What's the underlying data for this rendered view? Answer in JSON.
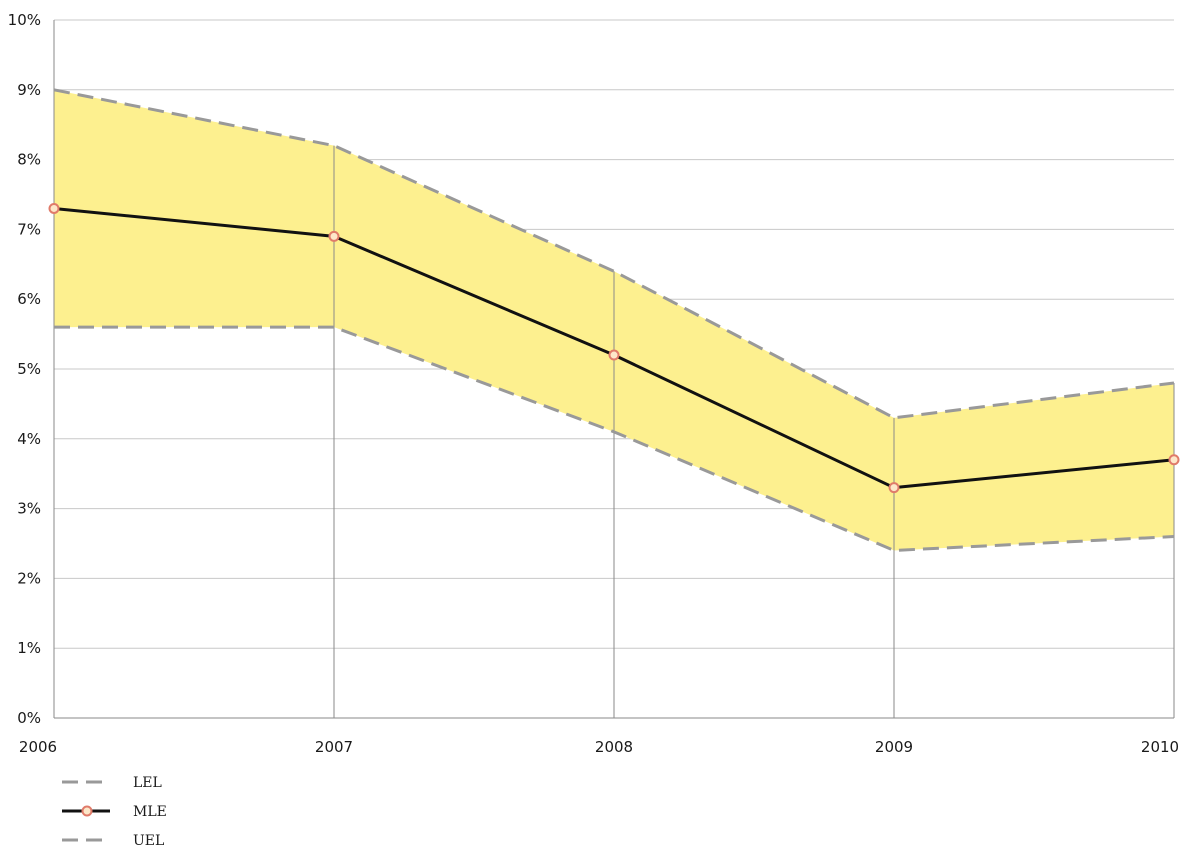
{
  "chart_data": {
    "type": "line",
    "x": [
      "2006",
      "2007",
      "2008",
      "2009",
      "2010"
    ],
    "series": [
      {
        "name": "LEL",
        "values": [
          5.6,
          5.6,
          4.1,
          2.4,
          2.6
        ],
        "style": "dashed",
        "color": "#999999"
      },
      {
        "name": "MLE",
        "values": [
          7.3,
          6.9,
          5.2,
          3.3,
          3.7
        ],
        "style": "solid",
        "color": "#111111",
        "marker": "circle",
        "marker_fill": "#fde7c9",
        "marker_stroke": "#e07b6a"
      },
      {
        "name": "UEL",
        "values": [
          9.0,
          8.2,
          6.4,
          4.3,
          4.8
        ],
        "style": "dashed",
        "color": "#999999"
      }
    ],
    "band": {
      "between": [
        "LEL",
        "UEL"
      ],
      "color": "#fdf08f"
    },
    "ylim": [
      0,
      10
    ],
    "yticks": [
      "0%",
      "1%",
      "2%",
      "3%",
      "4%",
      "5%",
      "6%",
      "7%",
      "8%",
      "9%",
      "10%"
    ],
    "grid": true,
    "legend_position": "bottom-left"
  }
}
